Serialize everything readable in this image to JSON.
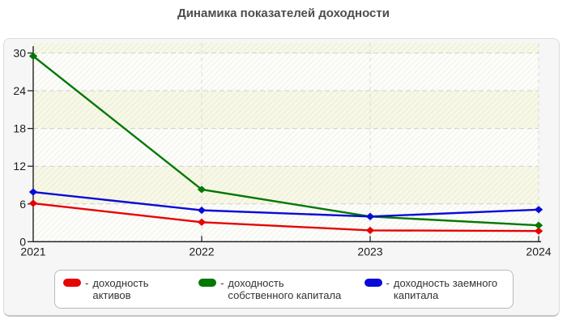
{
  "title": "Динамика показателей доходности",
  "chart_data": {
    "type": "line",
    "categories": [
      "2021",
      "2022",
      "2023",
      "2024"
    ],
    "series": [
      {
        "name": "доходность активов",
        "color": "#e60404",
        "values": [
          6.1,
          3.1,
          1.8,
          1.7
        ]
      },
      {
        "name": "доходность собственного капитала",
        "color": "#037803",
        "values": [
          29.5,
          8.3,
          4.0,
          2.6
        ]
      },
      {
        "name": "доходность заемного капитала",
        "color": "#0a0ad8",
        "values": [
          7.9,
          5.0,
          4.0,
          5.1
        ]
      }
    ],
    "y_ticks": [
      0,
      6,
      12,
      18,
      24,
      30
    ],
    "ylim": [
      0,
      31.6
    ],
    "grid": "dashed",
    "legend_position": "bottom",
    "legend_dash": "-",
    "style": {
      "band_white": "#fdfdfa",
      "band_cream": "#f8f8e6",
      "hatch_color": "#8a8a8a",
      "grid_color": "#cfcfcf",
      "vgrid_color": "#dadada",
      "axis_color": "#222222",
      "tick_label_color": "#1b1b1b"
    }
  }
}
